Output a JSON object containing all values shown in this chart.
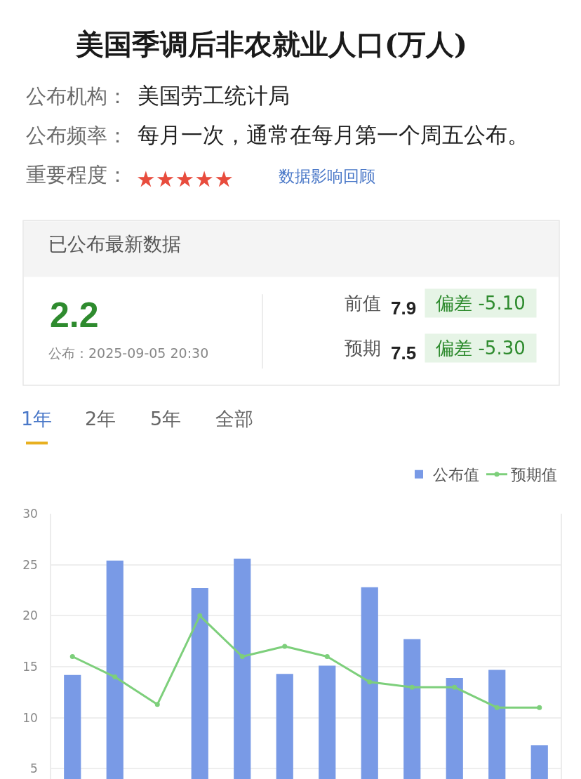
{
  "chart_data": [
    {
      "type": "other",
      "title": "美国季调后非农就业人口(万人)",
      "annotations": [
        "公布机构：",
        "美国劳工统计局",
        "公布频率：",
        "每月一次，通常在每月第一个周五公布。",
        "重要程度：",
        "★★★★★",
        "数据影响回顾",
        "已公布最新数据",
        "2.2",
        "公布：2025-09-05 20:30",
        "前值",
        "7.9",
        "偏差 -5.10",
        "预期",
        "7.5",
        "偏差 -5.30",
        "1年",
        "2年",
        "5年",
        "全部"
      ]
    },
    {
      "type": "bar",
      "categories": [
        null,
        null,
        null,
        null,
        null,
        null,
        null,
        null,
        null,
        null,
        null,
        null
      ],
      "series": [
        {
          "name": "公布值",
          "color": "#799ae6",
          "values": [
            14.2,
            25.4,
            null,
            22.7,
            25.6,
            14.3,
            15.1,
            22.8,
            17.7,
            13.9,
            14.7,
            7.3
          ]
        },
        {
          "name": "预期值",
          "type": "line",
          "color": "#7dcf7b",
          "values": [
            16.0,
            14.0,
            11.3,
            20.0,
            16.0,
            17.0,
            16.0,
            13.5,
            13.0,
            13.0,
            11.0,
            11.0
          ]
        }
      ],
      "ylim": [
        4,
        30
      ],
      "yticks": [
        5,
        10,
        15,
        20,
        25,
        30
      ],
      "grid": "y",
      "legend": "top right",
      "marker": "circle",
      "tick_labels": "y"
    }
  ]
}
